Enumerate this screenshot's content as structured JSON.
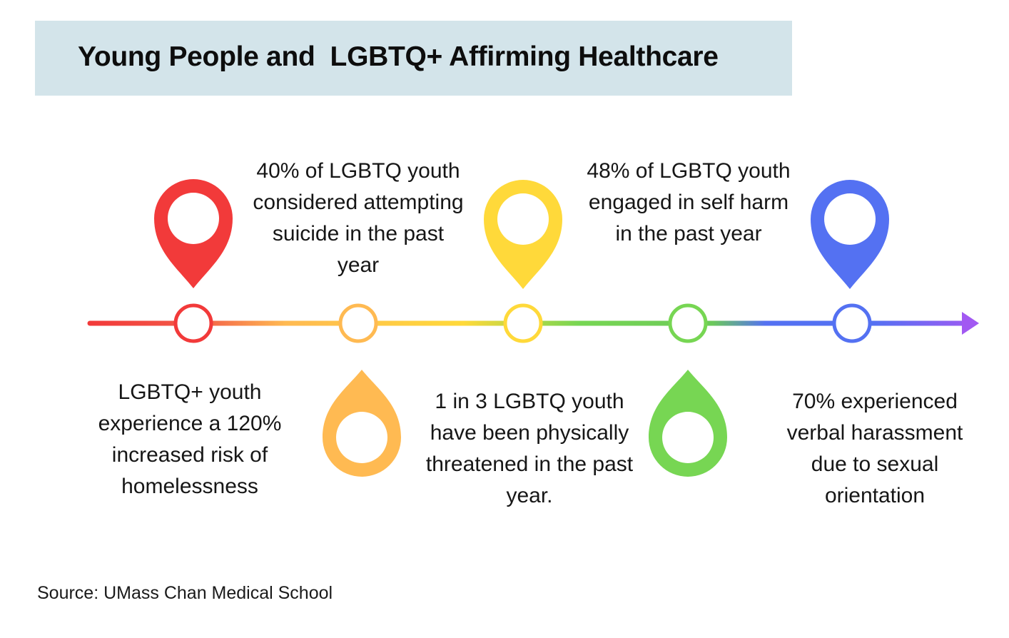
{
  "title": "Young People and  LGBTQ+ Affirming Healthcare",
  "facts": [
    {
      "text": "LGBTQ+ youth experience a 120% increased risk of homelessness",
      "color": "#f23a3a"
    },
    {
      "text": "40% of LGBTQ youth considered attempting suicide in the past year",
      "color": "#ffba52"
    },
    {
      "text": "1 in 3 LGBTQ youth have been physically threatened in the past year.",
      "color": "#ffd93a"
    },
    {
      "text": "48% of LGBTQ youth engaged in self harm in the past year",
      "color": "#77d653"
    },
    {
      "text": "70% experienced verbal harassment due to sexual orientation",
      "color": "#5471f2"
    }
  ],
  "arrow_color": "#a259f2",
  "source": "Source: UMass Chan Medical School",
  "icons": {
    "marker": "map-pin-icon",
    "drop": "drop-pin-icon"
  }
}
